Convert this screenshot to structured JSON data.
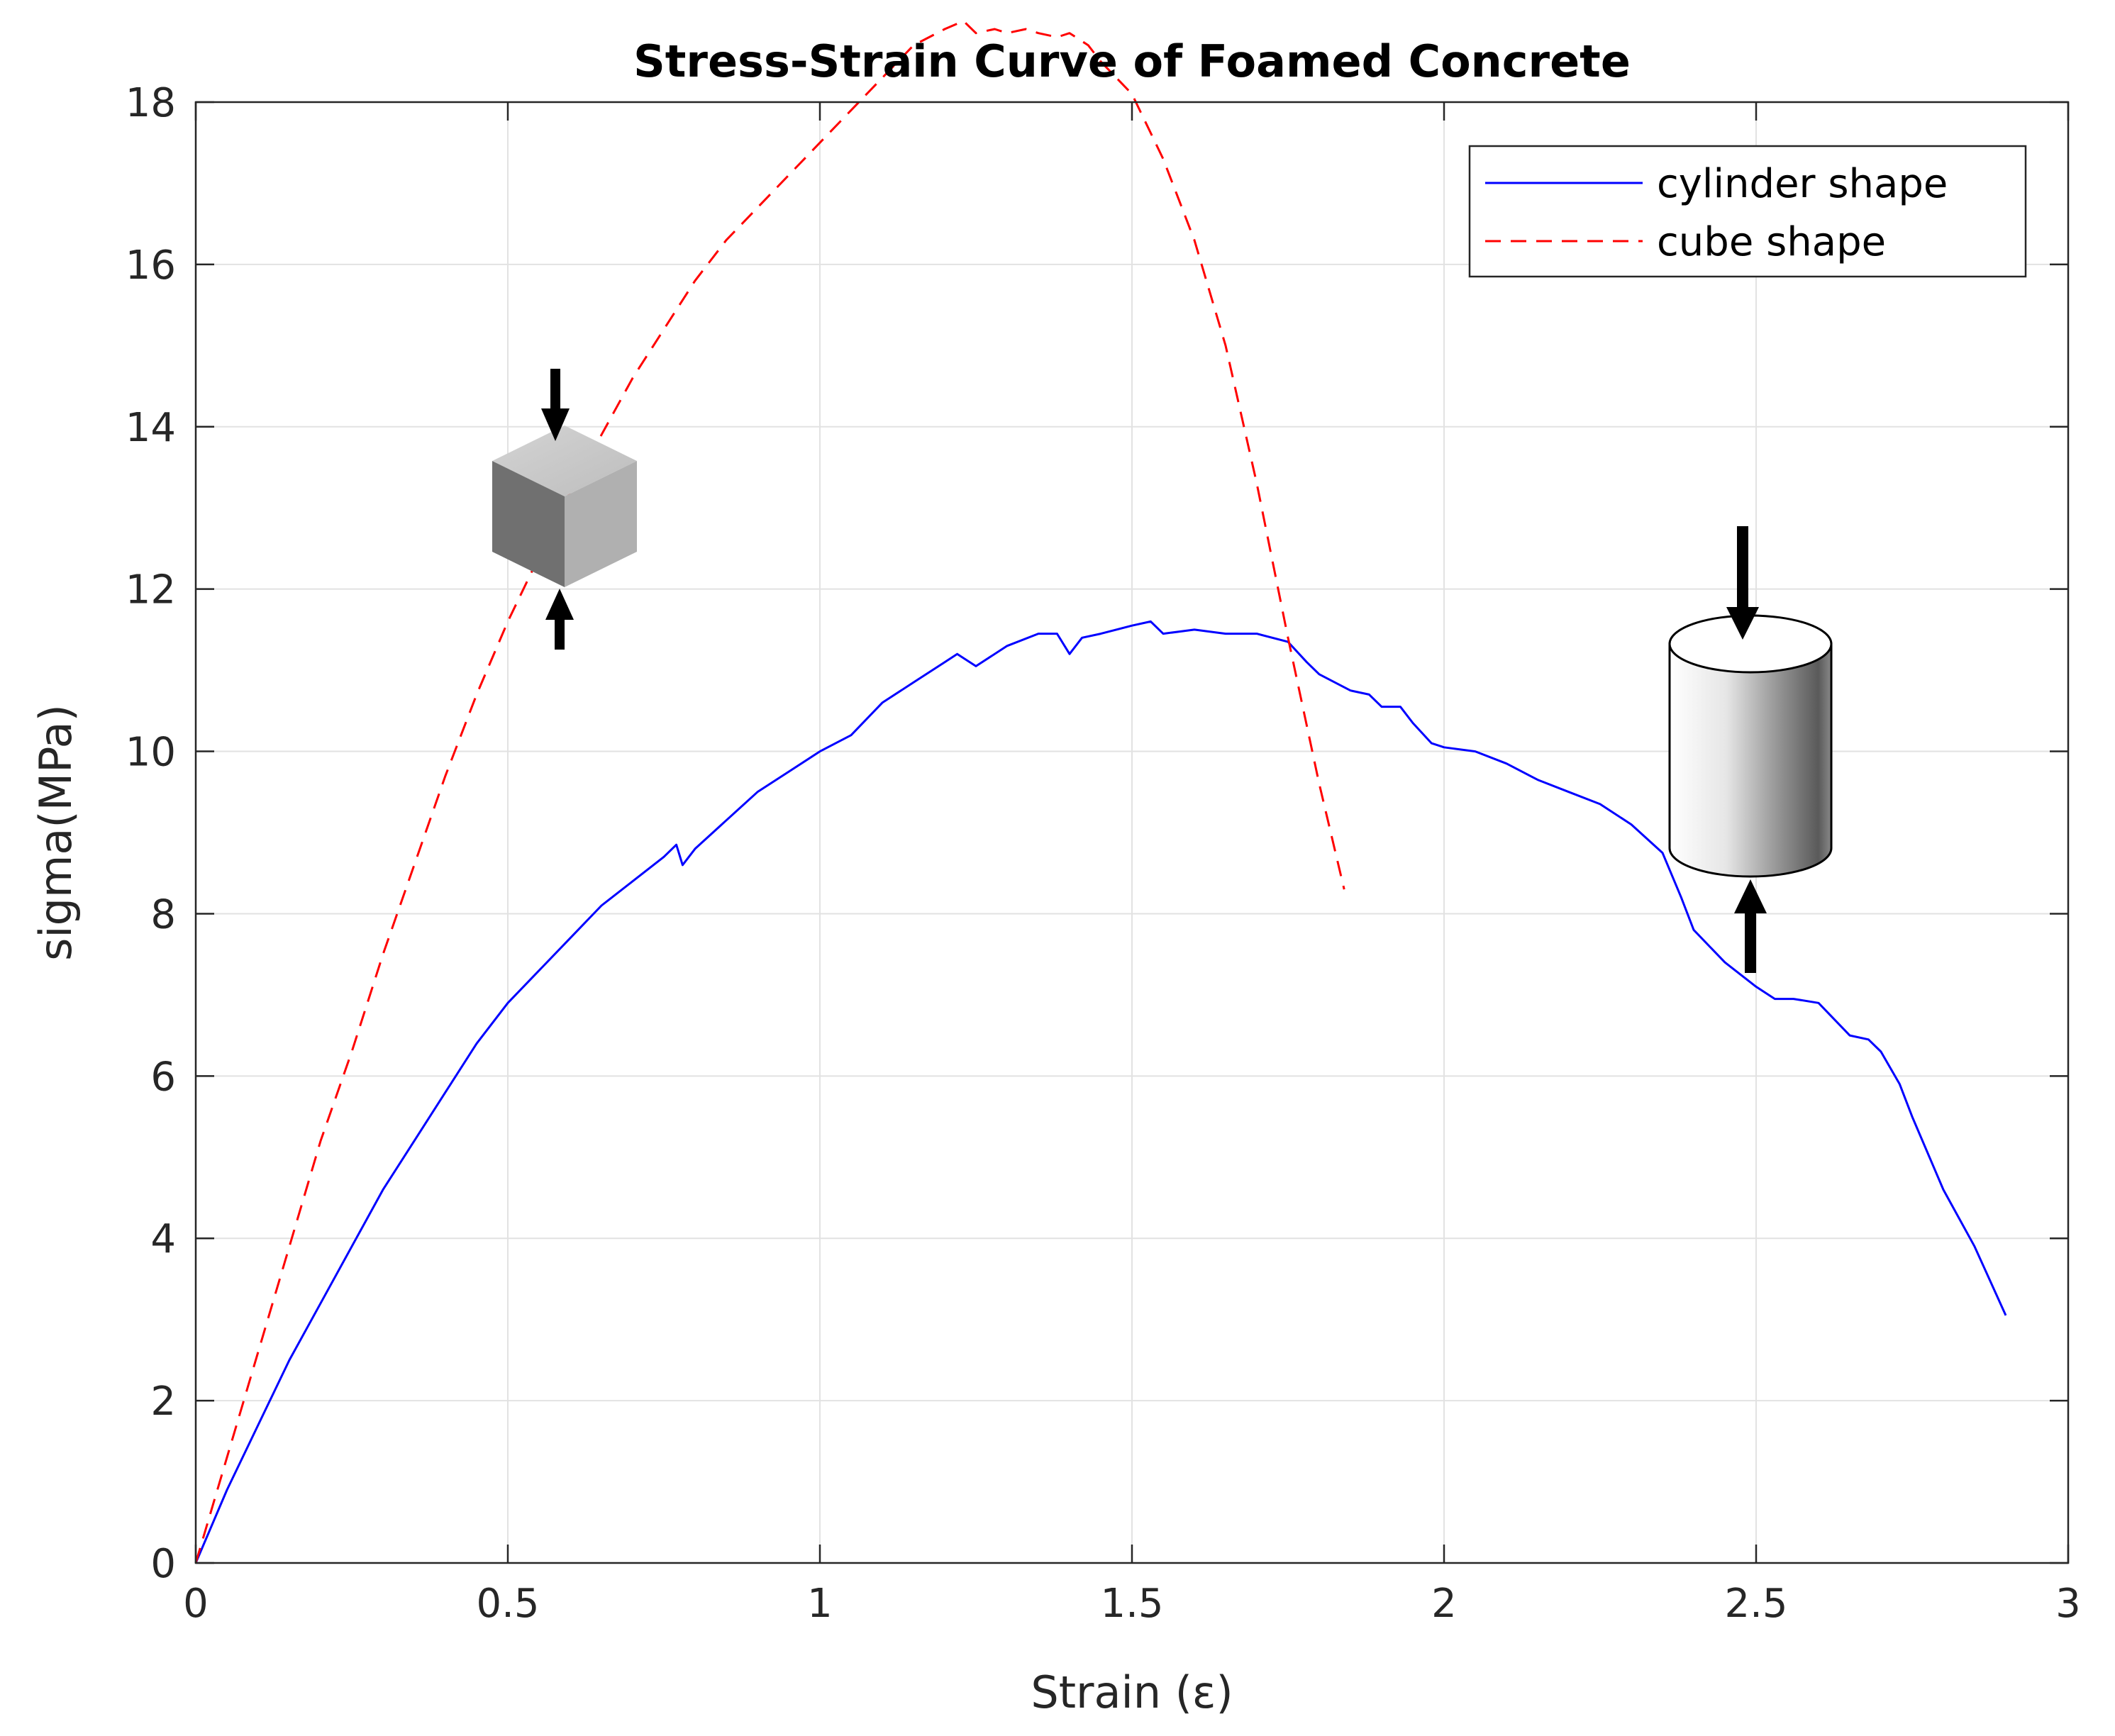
{
  "chart_data": {
    "type": "line",
    "title": "Stress-Strain Curve of Foamed Concrete",
    "xlabel": "Strain (ε)",
    "ylabel": "sigma(MPa)",
    "xlim": [
      0,
      3
    ],
    "ylim": [
      0,
      18
    ],
    "xticks": [
      0,
      0.5,
      1,
      1.5,
      2,
      2.5,
      3
    ],
    "xtick_labels": [
      "0",
      "0.5",
      "1",
      "1.5",
      "2",
      "2.5",
      "3"
    ],
    "yticks": [
      0,
      2,
      4,
      6,
      8,
      10,
      12,
      14,
      16,
      18
    ],
    "ytick_labels": [
      "0",
      "2",
      "4",
      "6",
      "8",
      "10",
      "12",
      "14",
      "16",
      "18"
    ],
    "grid": true,
    "legend_position": "top-right",
    "series": [
      {
        "name": "cylinder shape",
        "color": "#0000ff",
        "style": "solid",
        "x": [
          0,
          0.05,
          0.1,
          0.15,
          0.2,
          0.25,
          0.3,
          0.35,
          0.4,
          0.45,
          0.5,
          0.55,
          0.6,
          0.65,
          0.7,
          0.75,
          0.77,
          0.78,
          0.8,
          0.85,
          0.9,
          0.95,
          1.0,
          1.05,
          1.1,
          1.15,
          1.2,
          1.22,
          1.25,
          1.3,
          1.35,
          1.38,
          1.4,
          1.42,
          1.45,
          1.5,
          1.53,
          1.55,
          1.6,
          1.65,
          1.7,
          1.75,
          1.78,
          1.8,
          1.85,
          1.88,
          1.9,
          1.93,
          1.95,
          1.98,
          2.0,
          2.05,
          2.1,
          2.15,
          2.2,
          2.25,
          2.3,
          2.35,
          2.38,
          2.4,
          2.45,
          2.5,
          2.53,
          2.56,
          2.6,
          2.65,
          2.68,
          2.7,
          2.73,
          2.75,
          2.8,
          2.85,
          2.9
        ],
        "y": [
          0,
          0.9,
          1.7,
          2.5,
          3.2,
          3.9,
          4.6,
          5.2,
          5.8,
          6.4,
          6.9,
          7.3,
          7.7,
          8.1,
          8.4,
          8.7,
          8.85,
          8.6,
          8.8,
          9.15,
          9.5,
          9.75,
          10.0,
          10.2,
          10.6,
          10.85,
          11.1,
          11.2,
          11.05,
          11.3,
          11.45,
          11.45,
          11.2,
          11.4,
          11.45,
          11.55,
          11.6,
          11.45,
          11.5,
          11.45,
          11.45,
          11.35,
          11.1,
          10.95,
          10.75,
          10.7,
          10.55,
          10.55,
          10.35,
          10.1,
          10.05,
          10.0,
          9.85,
          9.65,
          9.5,
          9.35,
          9.1,
          8.75,
          8.2,
          7.8,
          7.4,
          7.1,
          6.95,
          6.95,
          6.9,
          6.5,
          6.45,
          6.3,
          5.9,
          5.5,
          4.6,
          3.9,
          3.05
        ]
      },
      {
        "name": "cube shape",
        "color": "#ff0000",
        "style": "dashed",
        "x": [
          0,
          0.05,
          0.1,
          0.15,
          0.2,
          0.25,
          0.3,
          0.35,
          0.4,
          0.45,
          0.5,
          0.55,
          0.6,
          0.65,
          0.7,
          0.75,
          0.8,
          0.85,
          0.9,
          0.95,
          1.0,
          1.05,
          1.1,
          1.15,
          1.2,
          1.23,
          1.25,
          1.28,
          1.3,
          1.33,
          1.35,
          1.38,
          1.4,
          1.43,
          1.45,
          1.5,
          1.55,
          1.6,
          1.65,
          1.7,
          1.75,
          1.8,
          1.84
        ],
        "y": [
          0,
          1.3,
          2.6,
          3.9,
          5.2,
          6.3,
          7.5,
          8.6,
          9.7,
          10.7,
          11.6,
          12.4,
          13.2,
          13.9,
          14.6,
          15.2,
          15.8,
          16.3,
          16.7,
          17.1,
          17.5,
          17.9,
          18.3,
          18.7,
          18.9,
          19.0,
          18.85,
          18.9,
          18.85,
          18.9,
          18.85,
          18.8,
          18.85,
          18.7,
          18.5,
          18.1,
          17.3,
          16.3,
          15.0,
          13.3,
          11.4,
          9.6,
          8.3
        ]
      }
    ]
  }
}
